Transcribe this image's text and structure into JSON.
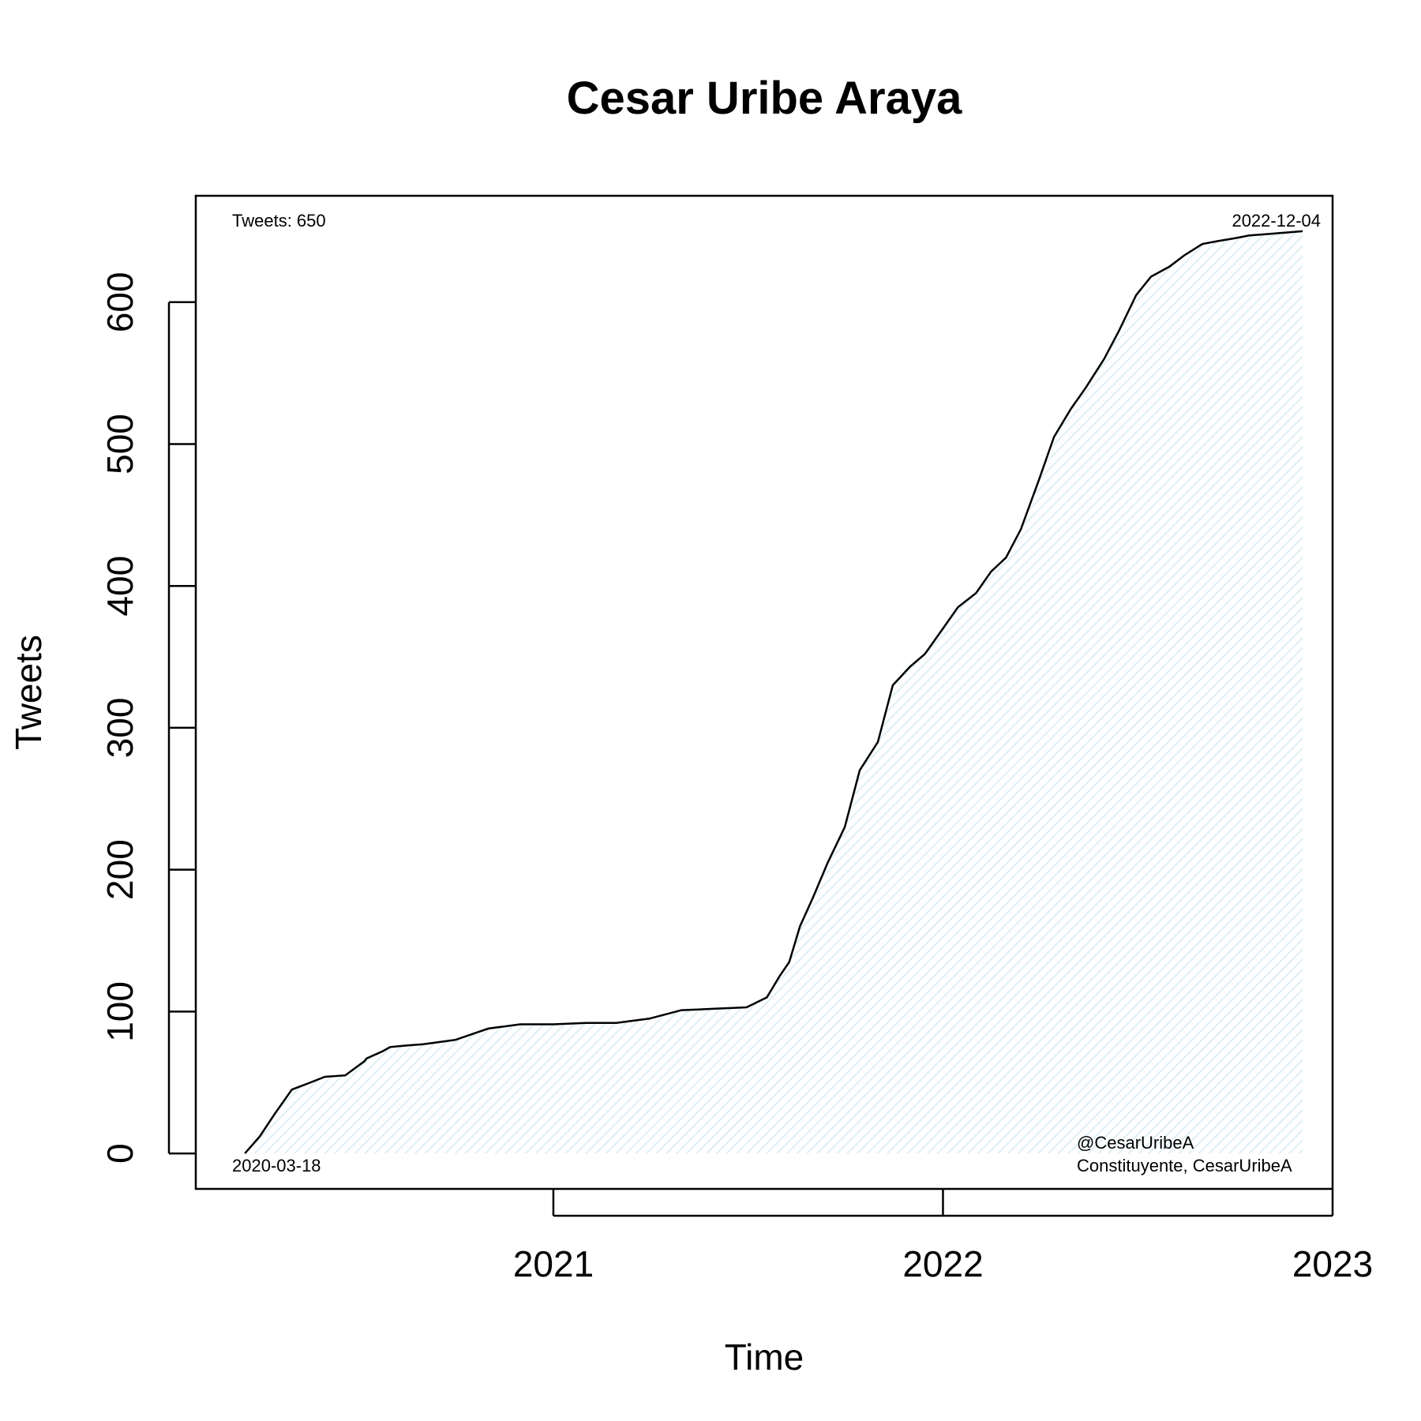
{
  "chart_data": {
    "type": "line",
    "title": "Cesar Uribe Araya",
    "xlabel": "Time",
    "ylabel": "Tweets",
    "x_ticks": [
      "2021",
      "2022",
      "2023"
    ],
    "y_ticks": [
      "0",
      "100",
      "200",
      "300",
      "400",
      "500",
      "600"
    ],
    "xlim": [
      "2020-02-01",
      "2023-01-01"
    ],
    "ylim": [
      -25,
      675
    ],
    "fill": "hatched-light-blue",
    "line_color": "#000000",
    "fill_color": "#e6f3f7",
    "annotations": {
      "total": "Tweets: 650",
      "start_date": "2020-03-18",
      "end_date": "2022-12-04",
      "handle": "@CesarUribeA",
      "source": "Constituyente, CesarUribeA"
    },
    "series": [
      {
        "x": [
          "2020-03-18",
          "2020-04-01",
          "2020-04-15",
          "2020-05-01",
          "2020-05-15",
          "2020-06-01",
          "2020-06-20",
          "2020-07-08",
          "2020-07-10",
          "2020-07-25",
          "2020-08-01",
          "2020-08-15",
          "2020-09-01",
          "2020-10-01",
          "2020-11-01",
          "2020-12-01",
          "2021-01-01",
          "2021-02-01",
          "2021-03-01",
          "2021-04-01",
          "2021-05-01",
          "2021-06-01",
          "2021-07-01",
          "2021-07-20",
          "2021-08-01",
          "2021-08-10",
          "2021-08-20",
          "2021-09-01",
          "2021-09-15",
          "2021-10-01",
          "2021-10-15",
          "2021-11-01",
          "2021-11-15",
          "2021-12-01",
          "2021-12-15",
          "2022-01-01",
          "2022-01-15",
          "2022-02-01",
          "2022-02-15",
          "2022-03-01",
          "2022-03-15",
          "2022-04-01",
          "2022-04-15",
          "2022-05-01",
          "2022-05-15",
          "2022-06-01",
          "2022-06-15",
          "2022-07-01",
          "2022-07-15",
          "2022-08-01",
          "2022-08-15",
          "2022-09-01",
          "2022-09-15",
          "2022-10-01",
          "2022-10-15",
          "2022-11-01",
          "2022-12-04"
        ],
        "y": [
          0,
          12,
          28,
          45,
          49,
          54,
          55,
          65,
          67,
          72,
          75,
          76,
          77,
          80,
          88,
          91,
          91,
          92,
          92,
          95,
          101,
          102,
          103,
          110,
          125,
          135,
          160,
          180,
          205,
          230,
          270,
          290,
          330,
          343,
          352,
          370,
          385,
          395,
          410,
          420,
          440,
          475,
          505,
          525,
          540,
          560,
          580,
          605,
          618,
          625,
          633,
          641,
          643,
          645,
          647,
          648,
          650
        ]
      }
    ]
  }
}
